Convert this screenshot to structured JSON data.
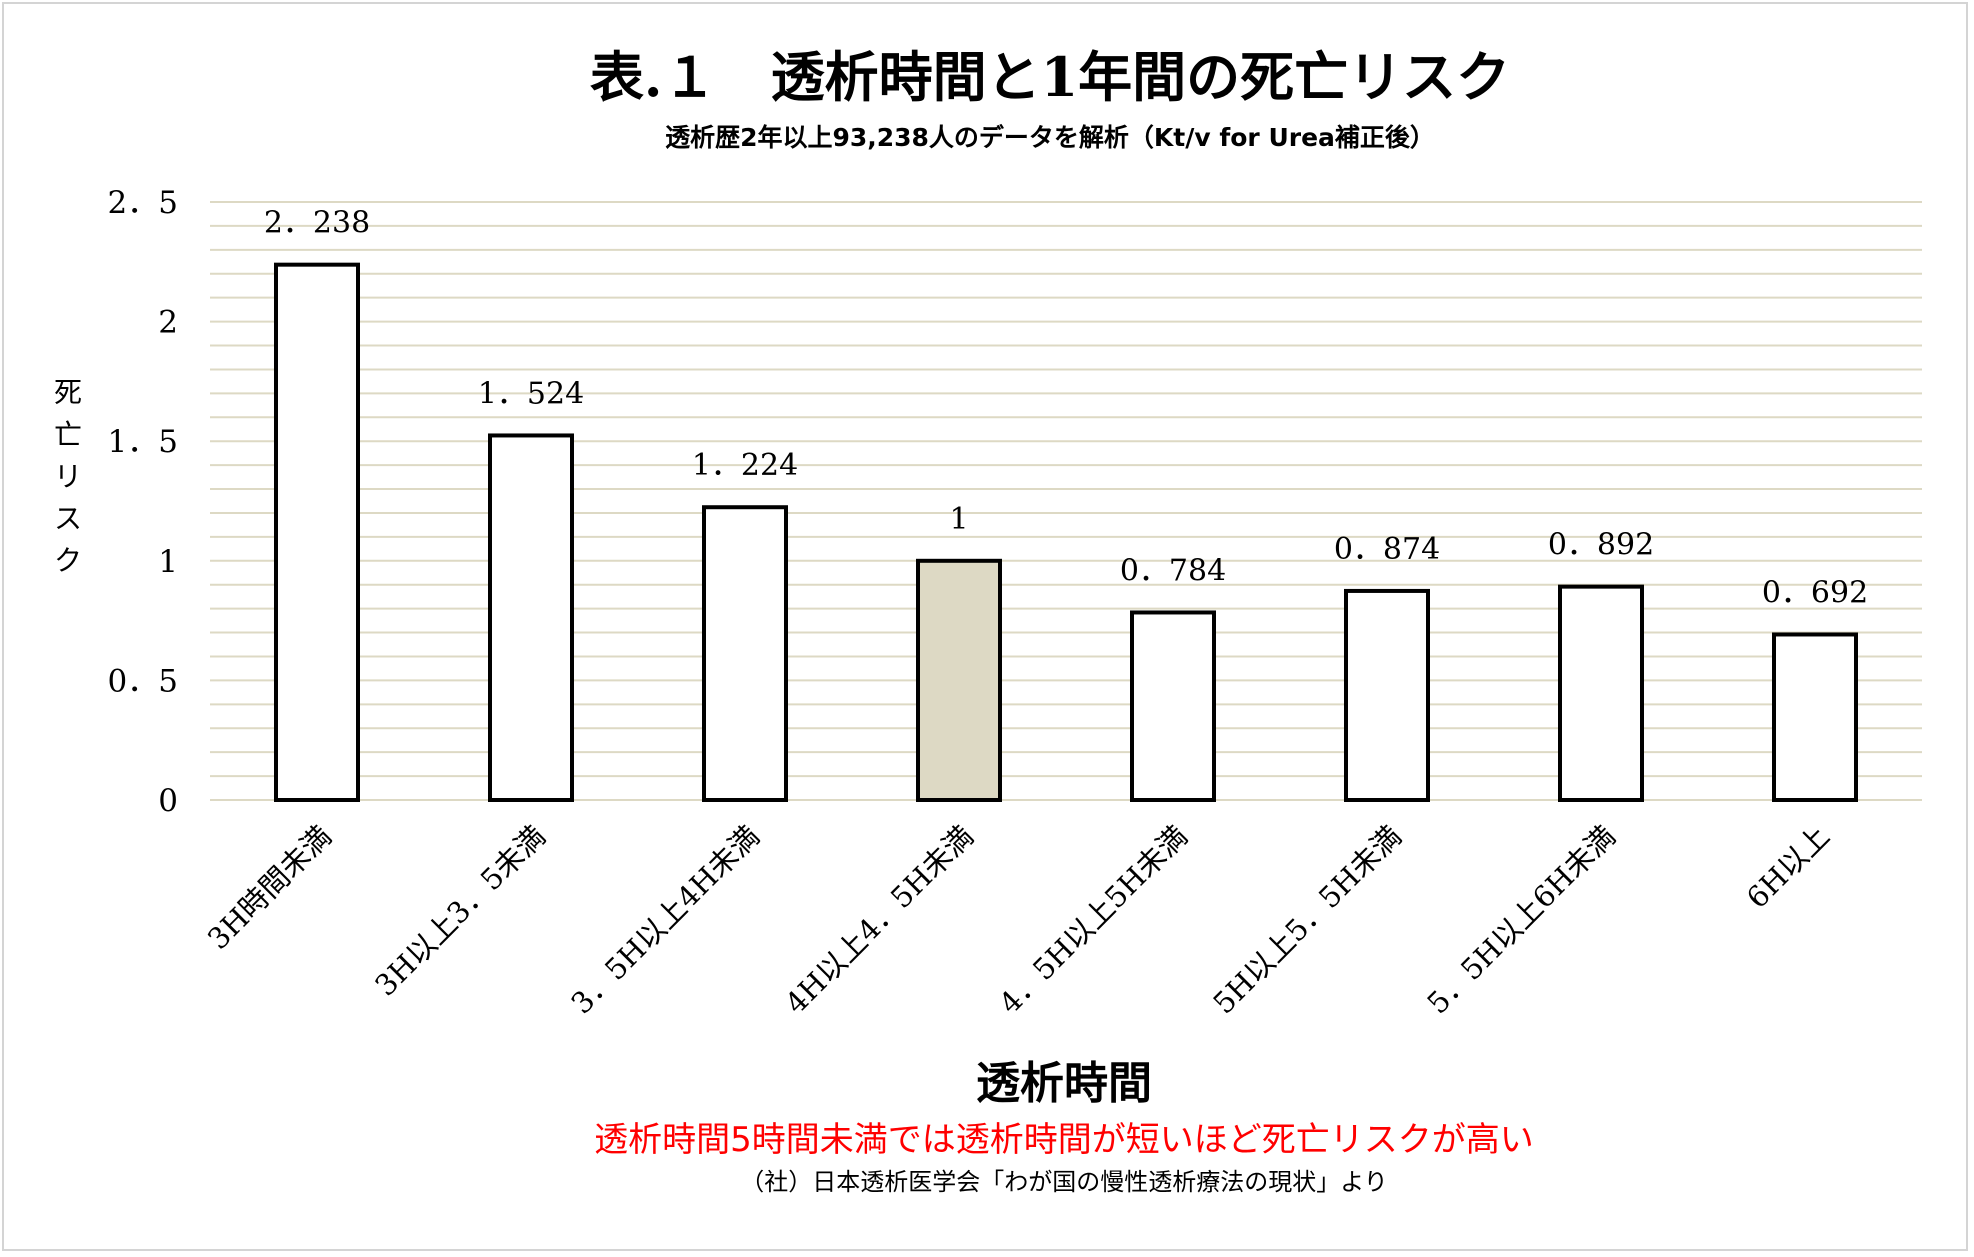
{
  "chart_data": {
    "type": "bar",
    "title": "表.１　透析時間と1年間の死亡リスク",
    "subtitle": "透析歴2年以上93,238人のデータを解析（Kt/v for Urea補正後）",
    "xlabel": "透析時間",
    "ylabel": "死亡リスク",
    "categories": [
      "3H時間未満",
      "3H以上3．5未満",
      "3．5H以上4H未満",
      "4H以上4．5H未満",
      "4．5H以上5H未満",
      "5H以上5．5H未満",
      "5．5H以上6H未満",
      "6H以上"
    ],
    "values": [
      2.238,
      1.524,
      1.224,
      1,
      0.784,
      0.874,
      0.892,
      0.692
    ],
    "value_labels": [
      "2．238",
      "1．524",
      "1．224",
      "1",
      "0．784",
      "0．874",
      "0．892",
      "0．692"
    ],
    "yticks": [
      {
        "value": 0,
        "label": "0"
      },
      {
        "value": 0.5,
        "label": "0．5"
      },
      {
        "value": 1,
        "label": "1"
      },
      {
        "value": 1.5,
        "label": "1．5"
      },
      {
        "value": 2,
        "label": "2"
      },
      {
        "value": 2.5,
        "label": "2．5"
      }
    ],
    "ylim": [
      0,
      2.5
    ],
    "minor_grid_step": 0.1,
    "grid": true,
    "highlight_index": 3,
    "colors": {
      "bar_fill": "#ffffff",
      "bar_highlight_fill": "#ddd9c4",
      "bar_stroke": "#000000",
      "grid": "#ddd9c4",
      "conclusion": "#ff0000"
    }
  },
  "notes": {
    "conclusion": "透析時間5時間未満では透析時間が短いほど死亡リスクが高い",
    "source": "（社）日本透析医学会「わが国の慢性透析療法の現状」より"
  }
}
